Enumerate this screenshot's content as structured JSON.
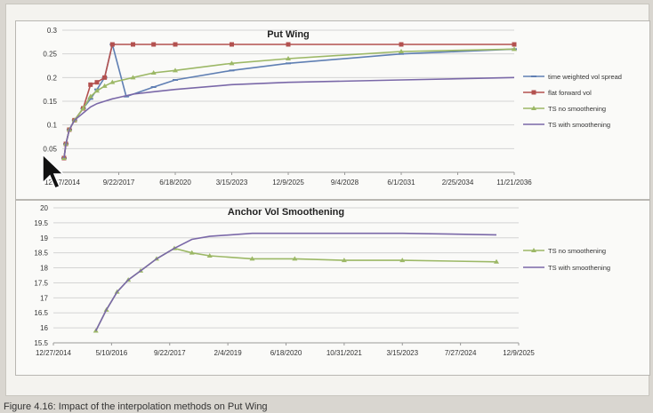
{
  "colors": {
    "time_weighted_vol_spread": "#5f7fb3",
    "flat_forward_vol": "#b3514f",
    "ts_no_smoothing": "#9cb866",
    "ts_with_smoothing": "#7a68a8",
    "grid": "#d4d4d4",
    "axis_text": "#333333"
  },
  "caption": "Figure 4.16: Impact of the interpolation methods on Put Wing",
  "chart_data": [
    {
      "type": "line",
      "title": "Put Wing",
      "x_is_date": true,
      "xlim": [
        "2014-12-27",
        "2036-11-21"
      ],
      "ylim": [
        0,
        0.3
      ],
      "y_ticks": [
        0,
        0.05,
        0.1,
        0.15,
        0.2,
        0.25,
        0.3
      ],
      "y_tick_labels": [
        "0",
        "0.05",
        "0.1",
        "0.15",
        "0.2",
        "0.25",
        "0.3"
      ],
      "x_ticks": [
        "2014-12-27",
        "2017-09-22",
        "2020-06-18",
        "2023-03-15",
        "2025-12-09",
        "2028-09-04",
        "2031-06-01",
        "2034-02-25",
        "2036-11-21"
      ],
      "x_tick_labels": [
        "12/27/2014",
        "9/22/2017",
        "6/18/2020",
        "3/15/2023",
        "12/9/2025",
        "9/4/2028",
        "6/1/2031",
        "2/25/2034",
        "11/21/2036"
      ],
      "grid": true,
      "legend_position": "right",
      "series": [
        {
          "name": "time weighted vol spread",
          "color_key": "time_weighted_vol_spread",
          "marker": "dash",
          "points": [
            [
              "2015-01-27",
              0.03
            ],
            [
              "2015-03-01",
              0.06
            ],
            [
              "2015-05-01",
              0.09
            ],
            [
              "2015-08-01",
              0.11
            ],
            [
              "2016-01-01",
              0.135
            ],
            [
              "2016-05-10",
              0.155
            ],
            [
              "2016-09-01",
              0.175
            ],
            [
              "2017-01-15",
              0.2
            ],
            [
              "2017-06-01",
              0.27
            ],
            [
              "2018-02-01",
              0.16
            ],
            [
              "2019-06-01",
              0.18
            ],
            [
              "2020-06-18",
              0.195
            ],
            [
              "2023-03-15",
              0.215
            ],
            [
              "2025-12-09",
              0.23
            ],
            [
              "2031-06-01",
              0.25
            ],
            [
              "2036-11-21",
              0.26
            ]
          ]
        },
        {
          "name": "flat forward vol",
          "color_key": "flat_forward_vol",
          "marker": "square",
          "points": [
            [
              "2015-01-27",
              0.03
            ],
            [
              "2015-03-01",
              0.06
            ],
            [
              "2015-05-01",
              0.09
            ],
            [
              "2015-08-01",
              0.11
            ],
            [
              "2016-01-01",
              0.135
            ],
            [
              "2016-05-10",
              0.185
            ],
            [
              "2016-09-01",
              0.19
            ],
            [
              "2017-01-15",
              0.2
            ],
            [
              "2017-06-01",
              0.27
            ],
            [
              "2018-06-01",
              0.27
            ],
            [
              "2019-06-01",
              0.27
            ],
            [
              "2020-06-18",
              0.27
            ],
            [
              "2023-03-15",
              0.27
            ],
            [
              "2025-12-09",
              0.27
            ],
            [
              "2031-06-01",
              0.27
            ],
            [
              "2036-11-21",
              0.27
            ]
          ]
        },
        {
          "name": "TS no smoothening",
          "color_key": "ts_no_smoothing",
          "marker": "triangle",
          "points": [
            [
              "2015-01-27",
              0.03
            ],
            [
              "2015-03-01",
              0.06
            ],
            [
              "2015-05-01",
              0.09
            ],
            [
              "2015-08-01",
              0.11
            ],
            [
              "2016-01-01",
              0.135
            ],
            [
              "2016-05-10",
              0.16
            ],
            [
              "2016-09-01",
              0.172
            ],
            [
              "2017-01-15",
              0.182
            ],
            [
              "2017-06-01",
              0.19
            ],
            [
              "2018-06-01",
              0.2
            ],
            [
              "2019-06-01",
              0.21
            ],
            [
              "2020-06-18",
              0.215
            ],
            [
              "2023-03-15",
              0.23
            ],
            [
              "2025-12-09",
              0.24
            ],
            [
              "2031-06-01",
              0.255
            ],
            [
              "2036-11-21",
              0.26
            ]
          ]
        },
        {
          "name": "TS with smoothening",
          "color_key": "ts_with_smoothing",
          "marker": "none",
          "points": [
            [
              "2015-01-27",
              0.03
            ],
            [
              "2015-03-01",
              0.06
            ],
            [
              "2015-05-01",
              0.09
            ],
            [
              "2015-08-01",
              0.11
            ],
            [
              "2016-01-01",
              0.125
            ],
            [
              "2016-05-10",
              0.138
            ],
            [
              "2016-09-01",
              0.145
            ],
            [
              "2017-01-15",
              0.15
            ],
            [
              "2017-06-01",
              0.155
            ],
            [
              "2018-06-01",
              0.165
            ],
            [
              "2019-06-01",
              0.17
            ],
            [
              "2020-06-18",
              0.175
            ],
            [
              "2023-03-15",
              0.185
            ],
            [
              "2025-12-09",
              0.19
            ],
            [
              "2031-06-01",
              0.195
            ],
            [
              "2036-11-21",
              0.2
            ]
          ]
        }
      ]
    },
    {
      "type": "line",
      "title": "Anchor Vol Smoothening",
      "x_is_date": true,
      "xlim": [
        "2014-12-27",
        "2025-12-09"
      ],
      "ylim": [
        15.5,
        20
      ],
      "y_ticks": [
        15.5,
        16,
        16.5,
        17,
        17.5,
        18,
        18.5,
        19,
        19.5,
        20
      ],
      "y_tick_labels": [
        "15.5",
        "16",
        "16.5",
        "17",
        "17.5",
        "18",
        "18.5",
        "19",
        "19.5",
        "20"
      ],
      "x_ticks": [
        "2014-12-27",
        "2016-05-10",
        "2017-09-22",
        "2019-02-04",
        "2020-06-18",
        "2021-10-31",
        "2023-03-15",
        "2024-07-27",
        "2025-12-09"
      ],
      "x_tick_labels": [
        "12/27/2014",
        "5/10/2016",
        "9/22/2017",
        "2/4/2019",
        "6/18/2020",
        "10/31/2021",
        "3/15/2023",
        "7/27/2024",
        "12/9/2025"
      ],
      "grid": true,
      "legend_position": "right",
      "series": [
        {
          "name": "TS no smoothening",
          "color_key": "ts_no_smoothing",
          "marker": "triangle",
          "points": [
            [
              "2015-12-27",
              15.9
            ],
            [
              "2016-03-27",
              16.6
            ],
            [
              "2016-06-27",
              17.2
            ],
            [
              "2016-10-01",
              17.6
            ],
            [
              "2017-01-15",
              17.9
            ],
            [
              "2017-06-01",
              18.3
            ],
            [
              "2017-11-01",
              18.65
            ],
            [
              "2018-04-01",
              18.5
            ],
            [
              "2018-09-01",
              18.4
            ],
            [
              "2019-09-01",
              18.3
            ],
            [
              "2020-09-01",
              18.3
            ],
            [
              "2021-10-31",
              18.25
            ],
            [
              "2023-03-15",
              18.25
            ],
            [
              "2025-06-01",
              18.2
            ]
          ]
        },
        {
          "name": "TS with smoothening",
          "color_key": "ts_with_smoothing",
          "marker": "none",
          "points": [
            [
              "2015-12-27",
              15.9
            ],
            [
              "2016-03-27",
              16.6
            ],
            [
              "2016-06-27",
              17.2
            ],
            [
              "2016-10-01",
              17.6
            ],
            [
              "2017-01-15",
              17.9
            ],
            [
              "2017-06-01",
              18.3
            ],
            [
              "2017-11-01",
              18.65
            ],
            [
              "2018-04-01",
              18.95
            ],
            [
              "2018-09-01",
              19.05
            ],
            [
              "2019-09-01",
              19.15
            ],
            [
              "2020-09-01",
              19.15
            ],
            [
              "2021-10-31",
              19.15
            ],
            [
              "2023-03-15",
              19.15
            ],
            [
              "2025-06-01",
              19.1
            ]
          ]
        }
      ]
    }
  ]
}
